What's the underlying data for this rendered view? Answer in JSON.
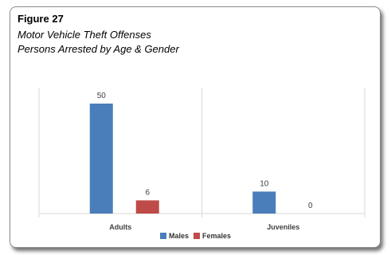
{
  "figure": {
    "label": "Figure 27",
    "subtitle_line1": "Motor Vehicle Theft Offenses",
    "subtitle_line2": "Persons Arrested by Age & Gender"
  },
  "chart_data": {
    "type": "bar",
    "categories": [
      "Adults",
      "Juveniles"
    ],
    "series": [
      {
        "name": "Males",
        "values": [
          50,
          10
        ],
        "color": "#4a7ebb"
      },
      {
        "name": "Females",
        "values": [
          6,
          0
        ],
        "color": "#be4b48"
      }
    ],
    "ylim": [
      0,
      50
    ],
    "grid": false,
    "category_separators": true,
    "data_labels": true,
    "legend": "bottom-center"
  }
}
